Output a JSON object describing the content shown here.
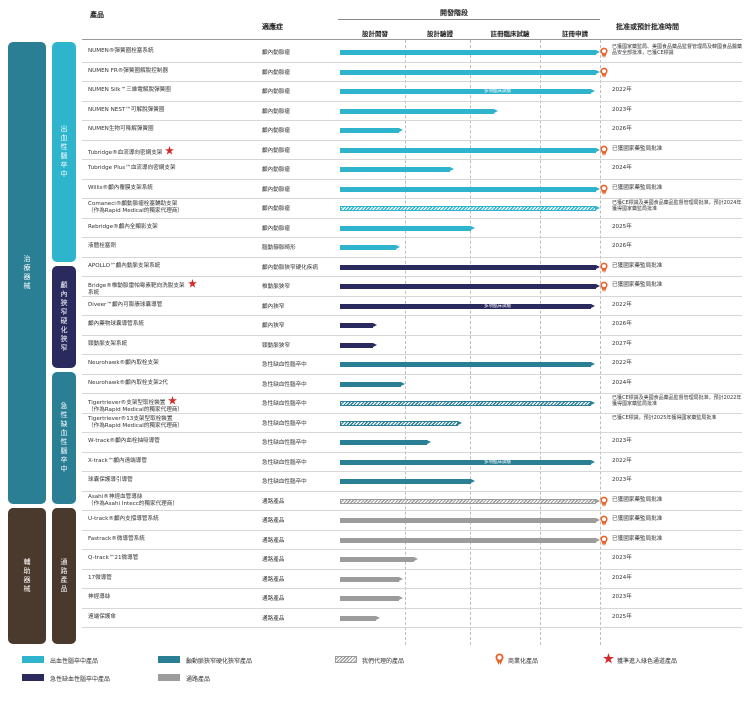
{
  "header": {
    "product": "產品",
    "indication": "適應症",
    "dev_stage": "開發階段",
    "stages": [
      "設計開發",
      "設計驗證",
      "註冊臨床試驗",
      "註冊申請"
    ],
    "approval": "批准或預計批准時間"
  },
  "categories": [
    {
      "label": "治療器械"
    },
    {
      "label": "輔助器械"
    },
    {
      "label": "出血性腦卒中"
    },
    {
      "label": "顱內狹窄硬化狹窄"
    },
    {
      "label": "急性缺血性腦卒中"
    },
    {
      "label": "通路產品"
    }
  ],
  "colors": {
    "hemorrhagic": "#2eb4cc",
    "stenosis": "#2a2a5e",
    "ischemic": "#2a7f95",
    "access": "#9c9c9c",
    "category_treatment": "#2a7f95",
    "category_auxiliary": "#4a3a2e",
    "star": "#d42a2a",
    "medal": "#e8642a"
  },
  "clinical_label": "多項臨床試驗",
  "rows": [
    {
      "name": "NUMEN®彈簧圈栓塞系統",
      "indication": "顱內動脈瘤",
      "approval": "已獲國家藥監局、美國食品藥品監督管理局及韓國食品醫藥品安全部批准，已獲CE標識",
      "color": "hemorrhagic",
      "progress": 1.0,
      "style": "solid",
      "medal": true,
      "star": false,
      "clinical": false
    },
    {
      "name": "NUMEN FR®彈簧圈解脫控制器",
      "indication": "顱內動脈瘤",
      "approval": "",
      "color": "hemorrhagic",
      "progress": 1.0,
      "style": "solid",
      "medal": true,
      "star": false,
      "clinical": false
    },
    {
      "name": "NUMEN Silk™三維電解脫彈簧圈",
      "indication": "顱內動脈瘤",
      "approval": "2022年",
      "color": "hemorrhagic",
      "progress": 0.98,
      "style": "solid",
      "medal": false,
      "star": false,
      "clinical": true
    },
    {
      "name": "NUMEN NEST™可解脫彈簧圈",
      "indication": "顱內動脈瘤",
      "approval": "2023年",
      "color": "hemorrhagic",
      "progress": 0.6,
      "style": "solid",
      "medal": false,
      "star": false,
      "clinical": false
    },
    {
      "name": "NUMEN生物可降解彈簧圈",
      "indication": "顱內動脈瘤",
      "approval": "2026年",
      "color": "hemorrhagic",
      "progress": 0.23,
      "style": "solid",
      "medal": false,
      "star": false,
      "clinical": false
    },
    {
      "name": "Tubridge®血流導向密網支架",
      "indication": "顱內動脈瘤",
      "approval": "已獲國家藥監局批准",
      "color": "hemorrhagic",
      "progress": 1.0,
      "style": "solid",
      "medal": true,
      "star": true,
      "clinical": false
    },
    {
      "name": "Tubridge Plus™血流導向密網支架",
      "indication": "顱內動脈瘤",
      "approval": "2024年",
      "color": "hemorrhagic",
      "progress": 0.43,
      "style": "solid",
      "medal": false,
      "star": false,
      "clinical": false
    },
    {
      "name": "Willis®顱內覆膜支架系統",
      "indication": "顱內動脈瘤",
      "approval": "已獲國家藥監局批准",
      "color": "hemorrhagic",
      "progress": 1.0,
      "style": "solid",
      "medal": true,
      "star": false,
      "clinical": false
    },
    {
      "name": "Comaneci®顱動脈瘤栓塞輔助支架",
      "name2": "（作為Rapid Medical的獨家代理商）",
      "indication": "顱內動脈瘤",
      "approval": "已獲CE標識及美國食品藥品監督管理局批准，預計2024年獲得國家藥監局批准",
      "color": "hemorrhagic",
      "progress": 1.0,
      "style": "stripe",
      "medal": false,
      "star": false,
      "clinical": false
    },
    {
      "name": "Rebridge®顱內全顯影支架",
      "indication": "顱內動脈瘤",
      "approval": "2025年",
      "color": "hemorrhagic",
      "progress": 0.51,
      "style": "solid",
      "medal": false,
      "star": false,
      "clinical": false
    },
    {
      "name": "液體栓塞劑",
      "indication": "腦動靜脈畸形",
      "approval": "2026年",
      "color": "hemorrhagic",
      "progress": 0.22,
      "style": "solid",
      "medal": false,
      "star": false,
      "clinical": false
    },
    {
      "name": "APOLLO™顱內動脈支架系統",
      "indication": "顱內動脈狹窄硬化疾病",
      "approval": "已獲國家藥監局批准",
      "color": "stenosis",
      "progress": 1.0,
      "style": "solid",
      "medal": true,
      "star": false,
      "clinical": false
    },
    {
      "name": "Bridge®椎動脈雷帕霉素靶向洗脫支架",
      "name2": "系統",
      "indication": "椎動脈狹窄",
      "approval": "已獲國家藥監局批准",
      "color": "stenosis",
      "progress": 1.0,
      "style": "solid",
      "medal": true,
      "star": true,
      "clinical": false
    },
    {
      "name": "Diveer™顱內可膨脹球囊導管",
      "indication": "顱內狹窄",
      "approval": "2022年",
      "color": "stenosis",
      "progress": 0.98,
      "style": "solid",
      "medal": false,
      "star": false,
      "clinical": true
    },
    {
      "name": "顱內藥物球囊導管系統",
      "indication": "顱內狹窄",
      "approval": "2026年",
      "color": "stenosis",
      "progress": 0.13,
      "style": "solid",
      "medal": false,
      "star": false,
      "clinical": false
    },
    {
      "name": "頸動脈支架系統",
      "indication": "頸動脈狹窄",
      "approval": "2027年",
      "color": "stenosis",
      "progress": 0.13,
      "style": "solid",
      "medal": false,
      "star": false,
      "clinical": false
    },
    {
      "name": "Neurohawk®顱內取栓支架",
      "indication": "急性缺血性腦卒中",
      "approval": "2022年",
      "color": "ischemic",
      "progress": 0.98,
      "style": "solid",
      "medal": false,
      "star": false,
      "clinical": false
    },
    {
      "name": "Neurohawk®顱內取栓支架2代",
      "indication": "急性缺血性腦卒中",
      "approval": "2024年",
      "color": "ischemic",
      "progress": 0.24,
      "style": "solid",
      "medal": false,
      "star": false,
      "clinical": false
    },
    {
      "name": "Tigertriever®支架型取栓裝置",
      "name2": "（作為Rapid Medical的獨家代理商）",
      "indication": "急性缺血性腦卒中",
      "approval": "已獲CE標識及美國食品藥品監督管理局批准，預計2022年獲得國家藥監局批准",
      "color": "ischemic",
      "progress": 0.98,
      "style": "stripe",
      "medal": false,
      "star": true,
      "clinical": false
    },
    {
      "name": "Tigertriever®13支架型取栓裝置",
      "name2": "（作為Rapid Medical的獨家代理商）",
      "indication": "急性缺血性腦卒中",
      "approval": "已獲CE標識，預計2025年獲得國家藥監局批准",
      "color": "ischemic",
      "progress": 0.46,
      "style": "stripe",
      "medal": false,
      "star": false,
      "clinical": false
    },
    {
      "name": "W-track®顱內血栓抽吸導管",
      "indication": "急性缺血性腦卒中",
      "approval": "2023年",
      "color": "ischemic",
      "progress": 0.34,
      "style": "solid",
      "medal": false,
      "star": false,
      "clinical": false
    },
    {
      "name": "X-track™顱內遠端導管",
      "indication": "急性缺血性腦卒中",
      "approval": "2022年",
      "color": "ischemic",
      "progress": 0.98,
      "style": "solid",
      "medal": false,
      "star": false,
      "clinical": true
    },
    {
      "name": "球囊保護導引導管",
      "indication": "急性缺血性腦卒中",
      "approval": "2023年",
      "color": "ischemic",
      "progress": 0.51,
      "style": "solid",
      "medal": false,
      "star": false,
      "clinical": false
    },
    {
      "name": "Asahi®神經血管導絲",
      "name2": "（作為Asahi Intecc的獨家代理商）",
      "indication": "通路產品",
      "approval": "已獲國家藥監局批准",
      "color": "access",
      "progress": 1.0,
      "style": "stripe",
      "medal": true,
      "star": false,
      "clinical": false
    },
    {
      "name": "U-track®顱內支撐導管系統",
      "indication": "通路產品",
      "approval": "已獲國家藥監局批准",
      "color": "access",
      "progress": 1.0,
      "style": "solid",
      "medal": true,
      "star": false,
      "clinical": false
    },
    {
      "name": "Fastrack®微導管系統",
      "indication": "通路產品",
      "approval": "已獲國家藥監局批准",
      "color": "access",
      "progress": 1.0,
      "style": "solid",
      "medal": true,
      "star": false,
      "clinical": false
    },
    {
      "name": "Q-track™21微導管",
      "indication": "通路產品",
      "approval": "2023年",
      "color": "access",
      "progress": 0.29,
      "style": "solid",
      "medal": false,
      "star": false,
      "clinical": false
    },
    {
      "name": "17微導管",
      "indication": "通路產品",
      "approval": "2024年",
      "color": "access",
      "progress": 0.23,
      "style": "solid",
      "medal": false,
      "star": false,
      "clinical": false
    },
    {
      "name": "神經導絲",
      "indication": "通路產品",
      "approval": "2023年",
      "color": "access",
      "progress": 0.23,
      "style": "solid",
      "medal": false,
      "star": false,
      "clinical": false
    },
    {
      "name": "遠端保護傘",
      "indication": "通路產品",
      "approval": "2025年",
      "color": "access",
      "progress": 0.14,
      "style": "solid",
      "medal": false,
      "star": false,
      "clinical": false
    }
  ],
  "legend": {
    "hemorrhagic": "出血性腦卒中產品",
    "stenosis": "顱動脈狹窄硬化狹窄產品",
    "stripe": "我們代理的產品",
    "medal": "商業化產品",
    "star": "獲準進入綠色通道產品",
    "ischemic": "急性缺血性腦卒中產品",
    "access": "通路產品"
  }
}
